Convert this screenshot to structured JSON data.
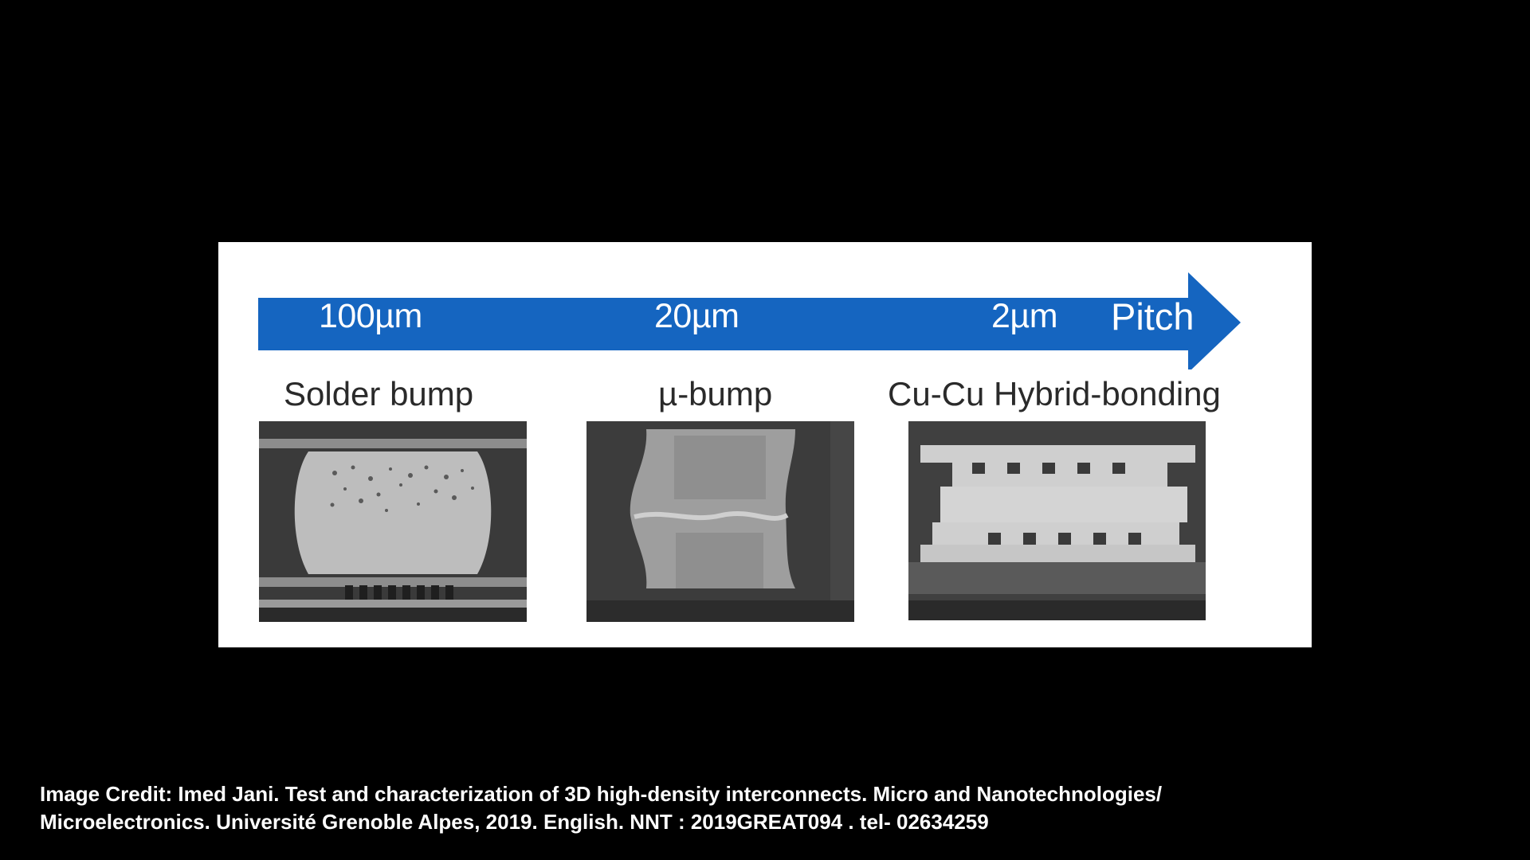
{
  "figure": {
    "arrow_color": "#1565c0",
    "scale_labels": [
      "100µm",
      "20µm",
      "2µm"
    ],
    "axis_label": "Pitch",
    "panels": [
      {
        "caption": "Solder bump"
      },
      {
        "caption": "µ-bump"
      },
      {
        "caption": "Cu-Cu Hybrid-bonding"
      }
    ]
  },
  "credit": {
    "line1": "Image Credit: Imed Jani. Test and characterization of 3D high-density interconnects. Micro and Nanotechnologies/",
    "line2": "Microelectronics. Université Grenoble Alpes, 2019. English. NNT : 2019GREAT094 . tel- 02634259"
  }
}
